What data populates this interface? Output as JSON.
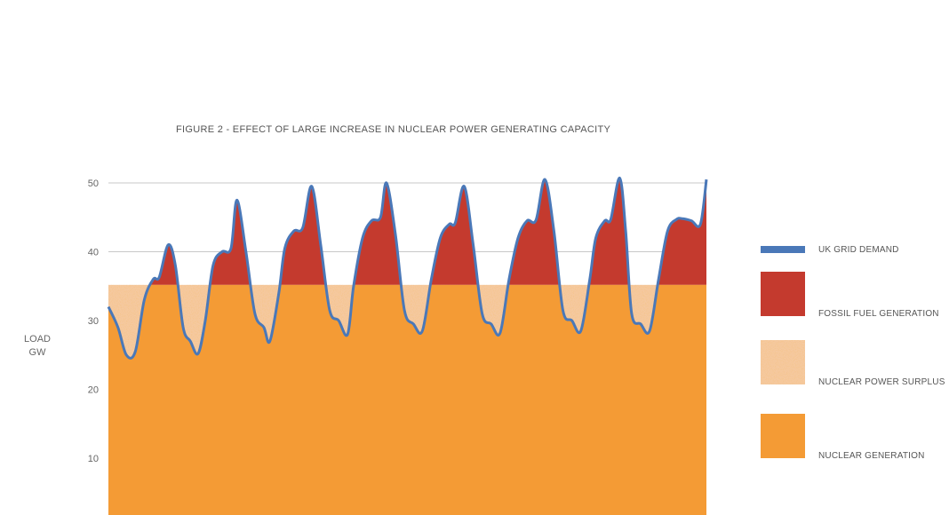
{
  "chart_data": {
    "type": "area",
    "title": "FIGURE 2 - EFFECT OF LARGE INCREASE IN NUCLEAR POWER GENERATING CAPACITY",
    "ylabel": [
      "LOAD",
      "GW"
    ],
    "ylim": [
      0,
      52
    ],
    "yticks": [
      10,
      20,
      30,
      40,
      50
    ],
    "grid": "horizontal",
    "legend_position": "right",
    "nuclear_generation_level": 35.2,
    "colors": {
      "demand": "#4a78b8",
      "fossil": "#c43a2e",
      "surplus": "#f5c9a1",
      "surplus_dots": "#e9924a",
      "nuclear": "#f49b35",
      "grid": "#c8c8c8"
    },
    "series": [
      {
        "name": "UK GRID DEMAND",
        "x": [
          0,
          0.016,
          0.03,
          0.045,
          0.06,
          0.075,
          0.085,
          0.1,
          0.112,
          0.125,
          0.137,
          0.15,
          0.162,
          0.175,
          0.19,
          0.205,
          0.215,
          0.23,
          0.245,
          0.26,
          0.27,
          0.285,
          0.295,
          0.31,
          0.325,
          0.34,
          0.355,
          0.37,
          0.385,
          0.4,
          0.41,
          0.425,
          0.44,
          0.455,
          0.465,
          0.48,
          0.495,
          0.51,
          0.525,
          0.54,
          0.555,
          0.57,
          0.58,
          0.595,
          0.61,
          0.625,
          0.64,
          0.655,
          0.67,
          0.685,
          0.7,
          0.715,
          0.73,
          0.745,
          0.76,
          0.775,
          0.79,
          0.805,
          0.815,
          0.83,
          0.84,
          0.855,
          0.865,
          0.875,
          0.89,
          0.905,
          0.92,
          0.935,
          0.95,
          0.96,
          0.975,
          0.99,
          1.0
        ],
        "values": [
          32,
          29,
          25,
          25.5,
          33,
          36,
          36.3,
          41,
          38,
          29,
          27,
          25.2,
          30,
          38,
          40,
          40.5,
          47.5,
          40,
          31,
          29,
          27,
          34,
          40.5,
          43,
          43.5,
          49.5,
          41,
          31.5,
          30,
          28,
          35,
          42,
          44.5,
          45,
          50,
          42.5,
          31.5,
          29.5,
          28.5,
          36,
          42,
          44,
          44.2,
          49.5,
          41,
          31,
          29.5,
          28.2,
          36,
          42,
          44.5,
          44.6,
          50.5,
          43,
          31.5,
          30,
          28.5,
          36,
          42,
          44.5,
          44.7,
          50.7,
          43,
          31,
          29.5,
          28.5,
          36,
          43,
          44.7,
          44.8,
          44.5,
          44,
          50.5
        ]
      },
      {
        "name": "FOSSIL FUEL GENERATION"
      },
      {
        "name": "NUCLEAR POWER SURPLUS"
      },
      {
        "name": "NUCLEAR GENERATION"
      }
    ]
  }
}
